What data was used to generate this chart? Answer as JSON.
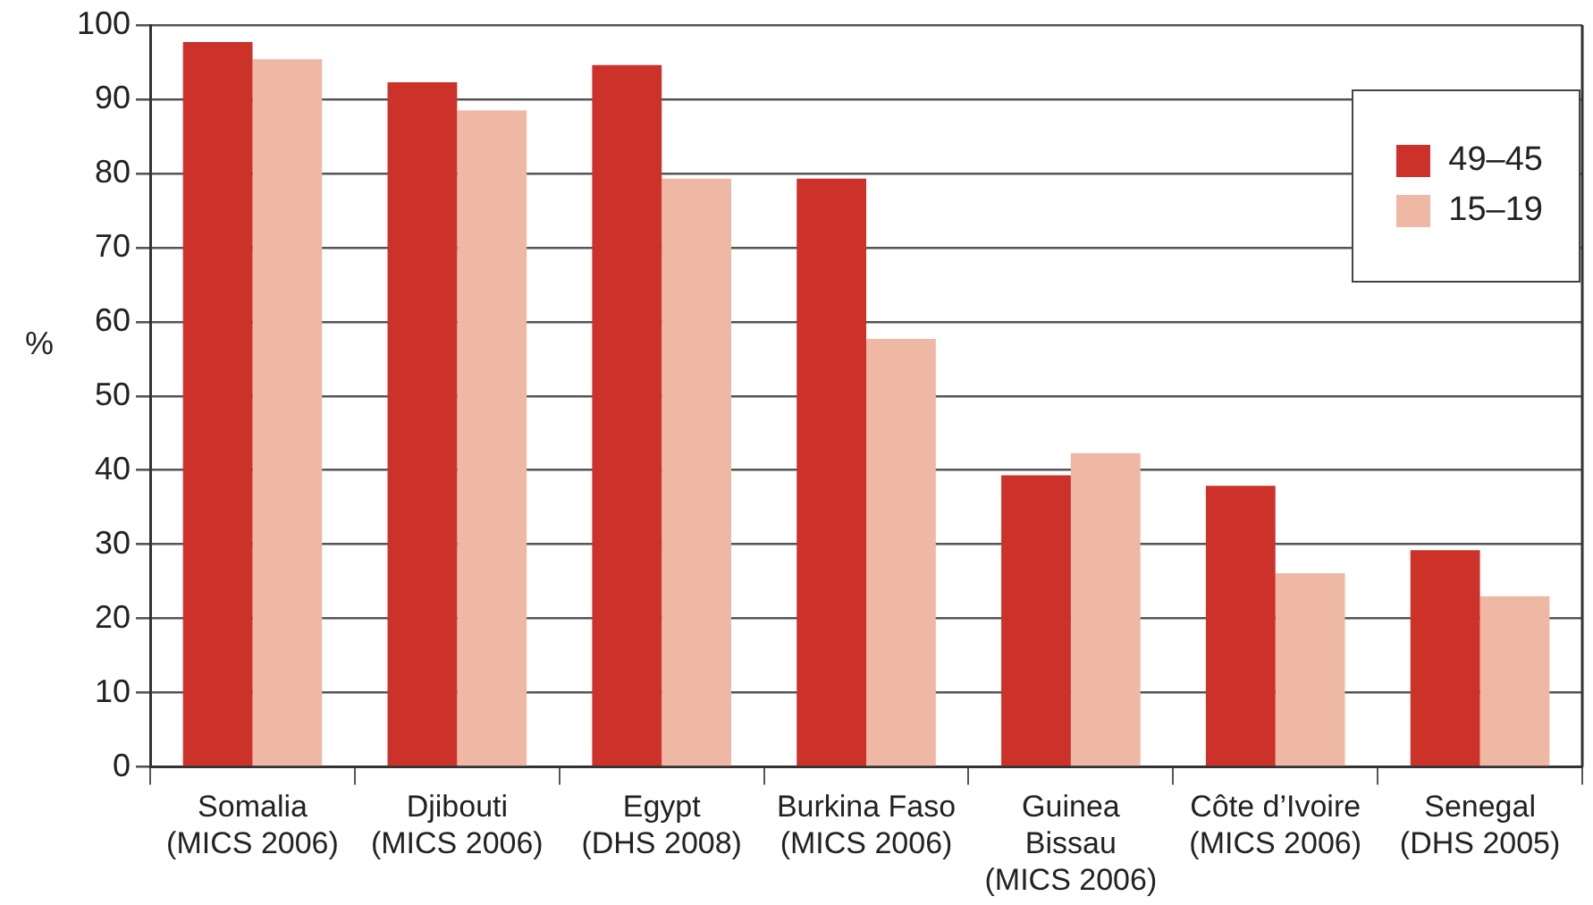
{
  "chart_data": {
    "type": "bar",
    "ylabel": "%",
    "categories": [
      "Somalia\n(MICS 2006)",
      "Djibouti\n(MICS 2006)",
      "Egypt\n(DHS 2008)",
      "Burkina Faso\n(MICS 2006)",
      "Guinea\nBissau\n(MICS 2006)",
      "Côte d’Ivoire\n(MICS 2006)",
      "Senegal\n(DHS 2005)"
    ],
    "series": [
      {
        "name": "49–45",
        "color": "#cc3229",
        "values": [
          97.7,
          92.3,
          94.6,
          79.3,
          39.3,
          37.9,
          29.2
        ]
      },
      {
        "name": "15–19",
        "color": "#eeb8a5",
        "values": [
          95.4,
          88.5,
          79.3,
          57.7,
          42.3,
          26.1,
          23.0
        ]
      }
    ],
    "ylim": [
      0,
      100
    ],
    "yticks": [
      0,
      10,
      20,
      30,
      40,
      50,
      60,
      70,
      80,
      90,
      100
    ],
    "grid": "y",
    "legend": "top right"
  }
}
